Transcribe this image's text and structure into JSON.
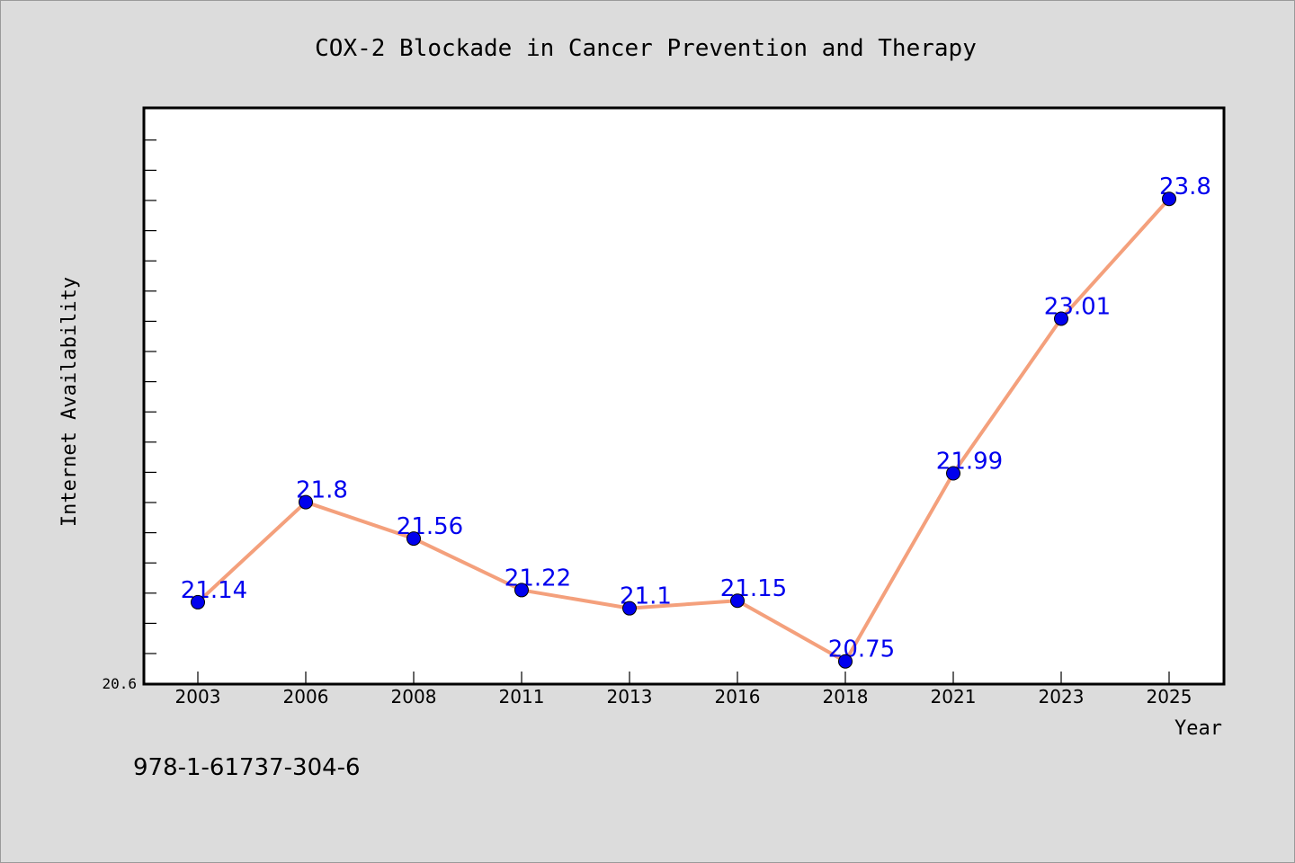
{
  "chart_data": {
    "type": "line",
    "title": "COX-2 Blockade in Cancer Prevention and Therapy",
    "xlabel": "Year",
    "ylabel": "Internet Availability",
    "categories": [
      "2003",
      "2006",
      "2008",
      "2011",
      "2013",
      "2016",
      "2018",
      "2021",
      "2023",
      "2025"
    ],
    "series": [
      {
        "values": [
          21.14,
          21.8,
          21.56,
          21.22,
          21.1,
          21.15,
          20.75,
          21.99,
          23.01,
          23.8
        ],
        "labels": [
          "21.14",
          "21.8",
          "21.56",
          "21.22",
          "21.1",
          "21.15",
          "20.75",
          "21.99",
          "23.01",
          "23.8"
        ]
      }
    ],
    "ylim": [
      20.6,
      24.4
    ],
    "ytick_labels": [
      "20.6"
    ],
    "grid": false,
    "legend": "none",
    "colors": {
      "line": "#f4a07c",
      "marker": "#0000ee",
      "data_label": "#0000ee",
      "plot_background": "#ffffff",
      "figure_background": "#dcdcdc"
    }
  },
  "footer": {
    "isbn": "978-1-61737-304-6"
  }
}
